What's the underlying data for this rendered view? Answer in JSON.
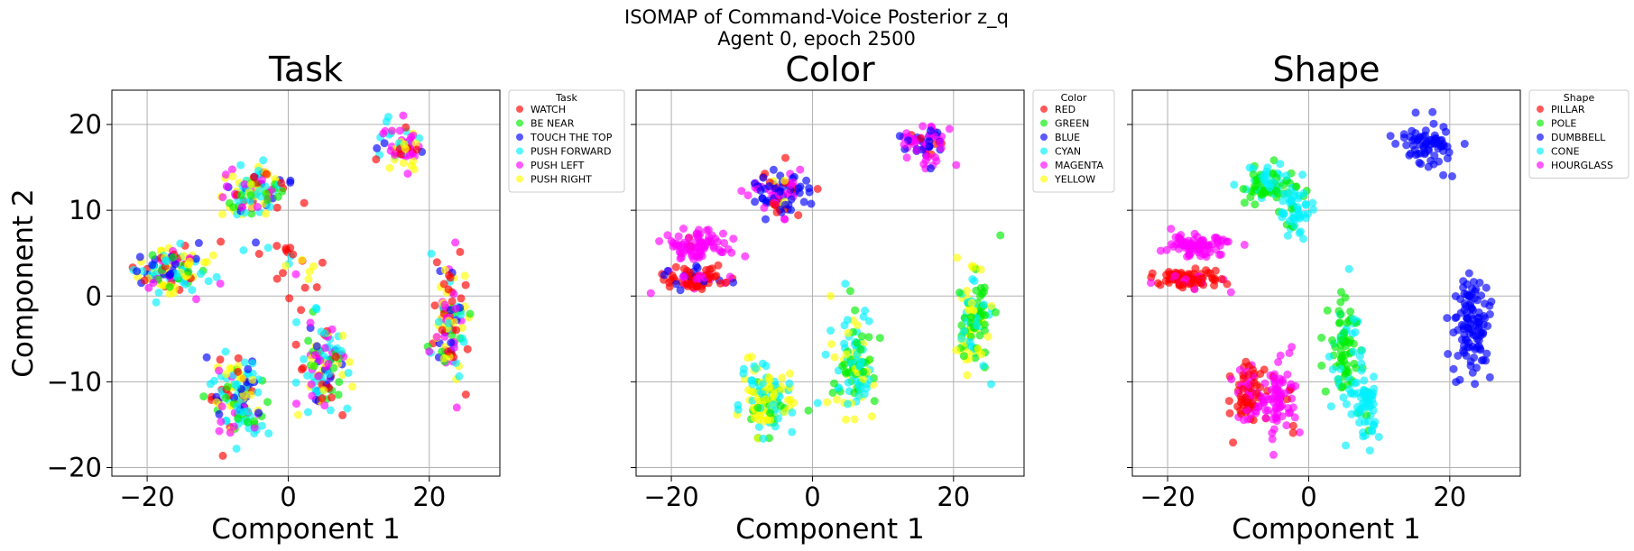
{
  "figure": {
    "title_line1": "ISOMAP of Command-Voice Posterior z_q",
    "title_line2": "Agent 0, epoch 2500"
  },
  "chart_data": [
    {
      "type": "scatter",
      "title": "Task",
      "xlabel": "Component 1",
      "ylabel": "Component 2",
      "xlim": [
        -25,
        30
      ],
      "ylim": [
        -21,
        24
      ],
      "xticks": [
        -20,
        0,
        20
      ],
      "yticks": [
        -20,
        -10,
        0,
        10,
        20
      ],
      "xtick_labels": [
        "−20",
        "0",
        "20"
      ],
      "ytick_labels": [
        "−20",
        "−10",
        "0",
        "10",
        "20"
      ],
      "grid": true,
      "legend": {
        "title": "Task",
        "placement": "outside-upper-right",
        "entries": [
          "WATCH",
          "BE NEAR",
          "TOUCH THE TOP",
          "PUSH FORWARD",
          "PUSH LEFT",
          "PUSH RIGHT"
        ]
      },
      "colors": [
        "#ff0000",
        "#00ee00",
        "#0000ff",
        "#00f0ff",
        "#ff00ff",
        "#ffff00"
      ],
      "clusters": [
        {
          "cx": -17,
          "cy": 3,
          "sx": 5,
          "sy": 2.5,
          "mix": [
            0.12,
            0.12,
            0.18,
            0.22,
            0.12,
            0.24
          ],
          "n": 130
        },
        {
          "cx": -4.5,
          "cy": 12,
          "sx": 4.5,
          "sy": 2.5,
          "mix": [
            0.1,
            0.15,
            0.15,
            0.25,
            0.15,
            0.2
          ],
          "n": 110
        },
        {
          "cx": 16,
          "cy": 17.5,
          "sx": 3,
          "sy": 2.5,
          "mix": [
            0.15,
            0.0,
            0.05,
            0.3,
            0.3,
            0.2
          ],
          "n": 70
        },
        {
          "cx": -7,
          "cy": -12,
          "sx": 3.5,
          "sy": 4,
          "mix": [
            0.15,
            0.1,
            0.15,
            0.3,
            0.15,
            0.15
          ],
          "n": 130
        },
        {
          "cx": 5,
          "cy": -8,
          "sx": 3,
          "sy": 5.5,
          "mix": [
            0.15,
            0.1,
            0.1,
            0.25,
            0.2,
            0.2
          ],
          "n": 120
        },
        {
          "cx": 23,
          "cy": -3,
          "sx": 2.5,
          "sy": 6,
          "mix": [
            0.2,
            0.1,
            0.15,
            0.15,
            0.2,
            0.2
          ],
          "n": 110
        },
        {
          "cx": 0,
          "cy": 4,
          "sx": 5,
          "sy": 3,
          "mix": [
            0.55,
            0.05,
            0.05,
            0.2,
            0.05,
            0.1
          ],
          "n": 25
        }
      ]
    },
    {
      "type": "scatter",
      "title": "Color",
      "xlabel": "Component 1",
      "ylabel": "",
      "xlim": [
        -25,
        30
      ],
      "ylim": [
        -21,
        24
      ],
      "xticks": [
        -20,
        0,
        20
      ],
      "yticks": [
        -20,
        -10,
        0,
        10,
        20
      ],
      "xtick_labels": [
        "−20",
        "0",
        "20"
      ],
      "grid": true,
      "legend": {
        "title": "Color",
        "placement": "outside-upper-right",
        "entries": [
          "RED",
          "GREEN",
          "BLUE",
          "CYAN",
          "MAGENTA",
          "YELLOW"
        ]
      },
      "colors": [
        "#ff0000",
        "#00ee00",
        "#0000ff",
        "#00f0ff",
        "#ff00ff",
        "#ffff00"
      ],
      "clusters": [
        {
          "cx": -17,
          "cy": 2,
          "sx": 4,
          "sy": 1.2,
          "mix": [
            0.6,
            0,
            0.15,
            0,
            0.25,
            0
          ],
          "n": 80
        },
        {
          "cx": -16,
          "cy": 6,
          "sx": 4,
          "sy": 1.2,
          "mix": [
            0.05,
            0,
            0,
            0,
            0.95,
            0
          ],
          "n": 80
        },
        {
          "cx": -5,
          "cy": 12,
          "sx": 4,
          "sy": 2.5,
          "mix": [
            0.15,
            0,
            0.5,
            0,
            0.3,
            0.05
          ],
          "n": 100
        },
        {
          "cx": 16,
          "cy": 17.5,
          "sx": 3,
          "sy": 2.5,
          "mix": [
            0.2,
            0,
            0.25,
            0,
            0.55,
            0
          ],
          "n": 70
        },
        {
          "cx": -6,
          "cy": -12,
          "sx": 3.5,
          "sy": 4,
          "mix": [
            0,
            0.15,
            0,
            0.4,
            0,
            0.45
          ],
          "n": 130
        },
        {
          "cx": 6,
          "cy": -8,
          "sx": 3,
          "sy": 5.5,
          "mix": [
            0,
            0.25,
            0,
            0.4,
            0,
            0.35
          ],
          "n": 120
        },
        {
          "cx": 23,
          "cy": -3,
          "sx": 2.5,
          "sy": 6,
          "mix": [
            0,
            0.4,
            0,
            0.3,
            0,
            0.3
          ],
          "n": 110
        }
      ]
    },
    {
      "type": "scatter",
      "title": "Shape",
      "xlabel": "Component 1",
      "ylabel": "",
      "xlim": [
        -25,
        30
      ],
      "ylim": [
        -21,
        24
      ],
      "xticks": [
        -20,
        0,
        20
      ],
      "yticks": [
        -20,
        -10,
        0,
        10,
        20
      ],
      "xtick_labels": [
        "−20",
        "0",
        "20"
      ],
      "grid": true,
      "legend": {
        "title": "Shape",
        "placement": "outside-upper-right",
        "entries": [
          "PILLAR",
          "POLE",
          "DUMBBELL",
          "CONE",
          "HOURGLASS"
        ]
      },
      "colors": [
        "#ff0000",
        "#00ee00",
        "#0000ff",
        "#00f0ff",
        "#ff00ff"
      ],
      "clusters": [
        {
          "cx": -17,
          "cy": 2,
          "sx": 4,
          "sy": 1.2,
          "mix": [
            0.75,
            0,
            0,
            0,
            0.25
          ],
          "n": 80
        },
        {
          "cx": -16,
          "cy": 6,
          "sx": 4,
          "sy": 1.2,
          "mix": [
            0,
            0,
            0,
            0,
            1
          ],
          "n": 80
        },
        {
          "cx": -6,
          "cy": 13,
          "sx": 3,
          "sy": 2,
          "mix": [
            0,
            0.6,
            0,
            0.4,
            0
          ],
          "n": 80
        },
        {
          "cx": -2,
          "cy": 10,
          "sx": 2,
          "sy": 3,
          "mix": [
            0,
            0.2,
            0,
            0.8,
            0
          ],
          "n": 50
        },
        {
          "cx": 17,
          "cy": 17.5,
          "sx": 3,
          "sy": 2.5,
          "mix": [
            0,
            0,
            1,
            0,
            0
          ],
          "n": 70
        },
        {
          "cx": -8,
          "cy": -12,
          "sx": 2.5,
          "sy": 3.5,
          "mix": [
            0.6,
            0,
            0,
            0,
            0.4
          ],
          "n": 90
        },
        {
          "cx": -4,
          "cy": -12,
          "sx": 2,
          "sy": 4,
          "mix": [
            0.1,
            0,
            0,
            0,
            0.9
          ],
          "n": 70
        },
        {
          "cx": 5,
          "cy": -6,
          "sx": 2.5,
          "sy": 5,
          "mix": [
            0,
            0.65,
            0,
            0.35,
            0
          ],
          "n": 90
        },
        {
          "cx": 8,
          "cy": -13,
          "sx": 1.8,
          "sy": 4,
          "mix": [
            0,
            0.1,
            0,
            0.9,
            0
          ],
          "n": 60
        },
        {
          "cx": 23,
          "cy": -3,
          "sx": 2.5,
          "sy": 6,
          "mix": [
            0,
            0,
            1,
            0,
            0
          ],
          "n": 110
        }
      ]
    }
  ]
}
